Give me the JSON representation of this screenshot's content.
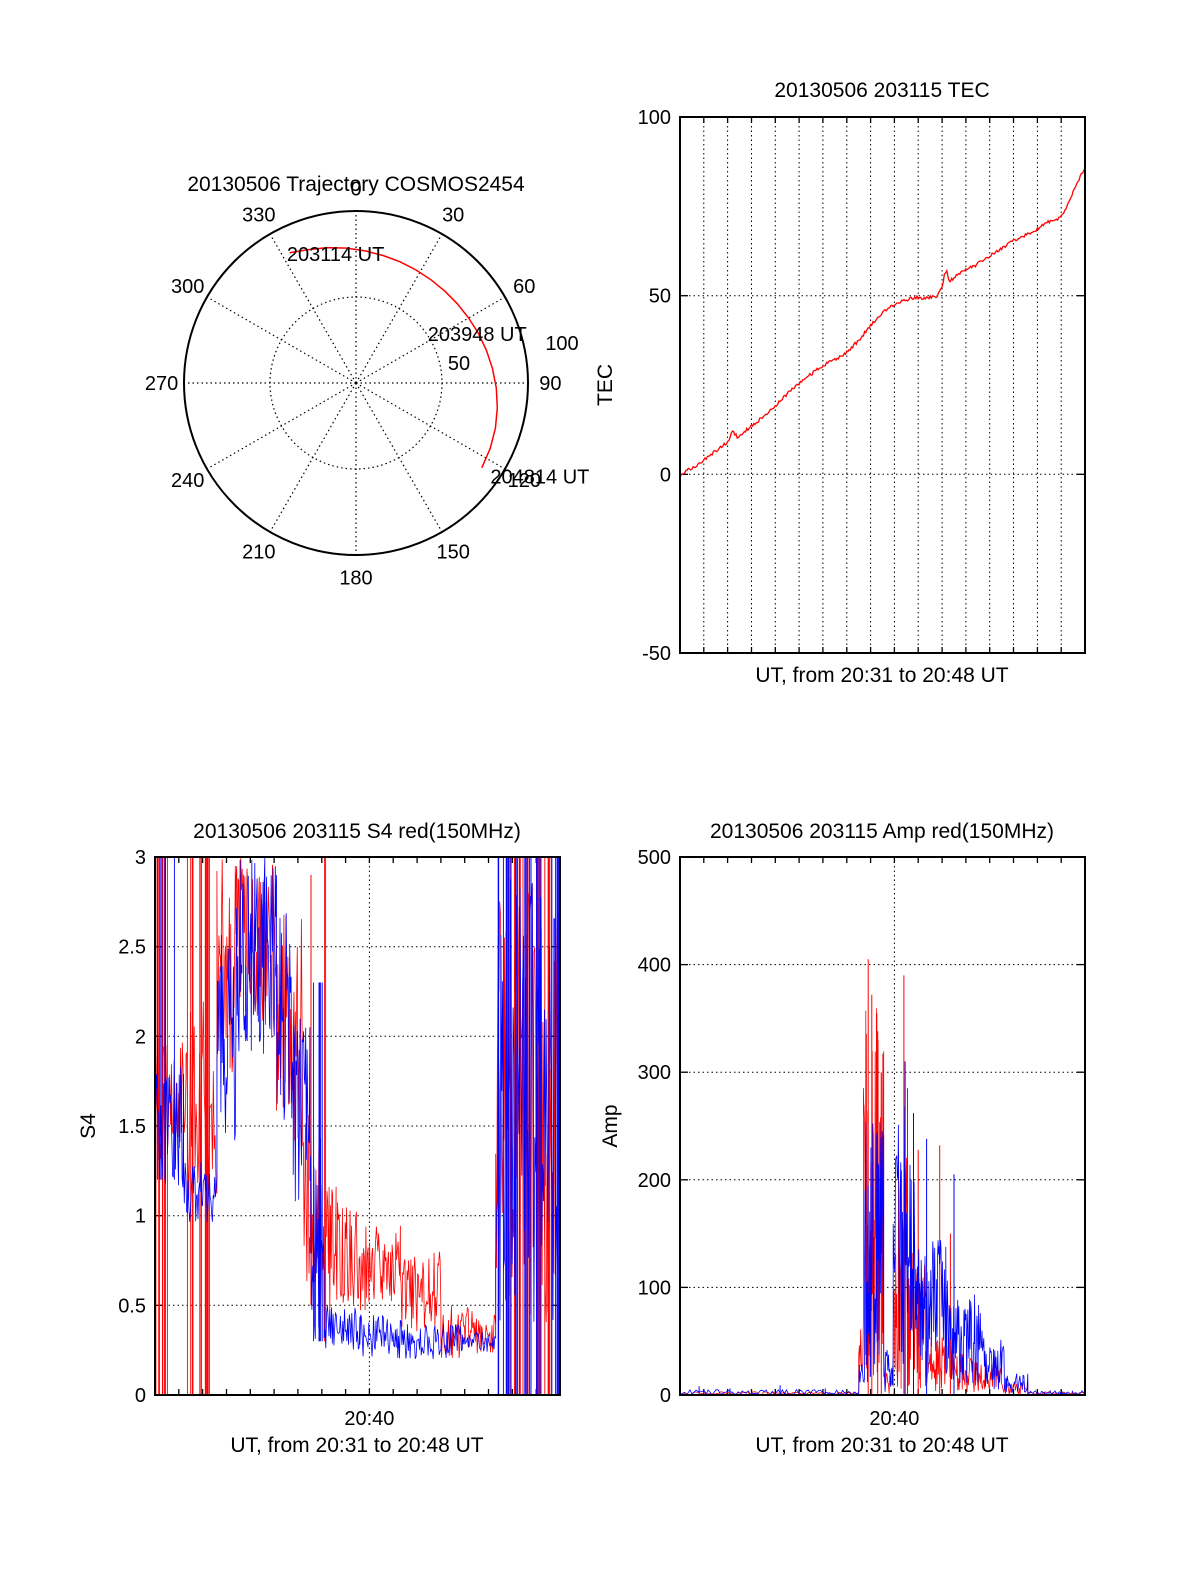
{
  "page": {
    "background": "#ffffff"
  },
  "colors": {
    "red": "#ff0000",
    "blue": "#0000ff",
    "axis": "#000000",
    "grid": "#000000"
  },
  "chart_data": [
    {
      "id": "trajectory",
      "type": "polar-trajectory",
      "title": "20130506 Trajectory COSMOS2454",
      "azimuth_ticks": [
        0,
        30,
        60,
        90,
        120,
        150,
        180,
        210,
        240,
        270,
        300,
        330
      ],
      "radial_ticks": [
        50,
        100
      ],
      "radial_max": 100,
      "grid": {
        "spokes_every_deg": 30,
        "inner_circle_r": 50
      },
      "annotations": [
        {
          "label": "203114 UT",
          "az": 351,
          "r": 76
        },
        {
          "label": "203948 UT",
          "az": 68,
          "r": 76
        },
        {
          "label": "204814 UT",
          "az": 117,
          "r": 120
        }
      ],
      "series": [
        {
          "name": "trajectory",
          "color": "#ff0000",
          "points_az_r": [
            [
              333,
              85
            ],
            [
              340,
              82.5
            ],
            [
              348,
              80.5
            ],
            [
              356,
              78.6
            ],
            [
              4,
              77
            ],
            [
              12,
              75.8
            ],
            [
              20,
              75
            ],
            [
              28,
              74.4
            ],
            [
              36,
              74.2
            ],
            [
              44,
              74.3
            ],
            [
              52,
              74.8
            ],
            [
              60,
              75.6
            ],
            [
              68,
              76.8
            ],
            [
              76,
              78.2
            ],
            [
              84,
              79.8
            ],
            [
              92,
              81.6
            ],
            [
              100,
              83.4
            ],
            [
              108,
              85.2
            ],
            [
              116,
              86.8
            ],
            [
              124,
              88.2
            ]
          ]
        }
      ]
    },
    {
      "id": "tec",
      "type": "line",
      "title": "20130506 203115 TEC",
      "xlabel": "UT, from 20:31 to 20:48 UT",
      "ylabel": "TEC",
      "ylim": [
        -50,
        100
      ],
      "yticks": [
        -50,
        0,
        50,
        100
      ],
      "x_total_minutes": 17,
      "x_start_label": "20:31",
      "x_end_label": "20:48",
      "xticks": [],
      "grid": {
        "h_dotted": [
          0,
          50
        ],
        "v_per_minute": true
      },
      "series": [
        {
          "name": "TEC",
          "color": "#ff0000",
          "noise_amp": 0.9,
          "points": [
            [
              0,
              0
            ],
            [
              0.2,
              0.6
            ],
            [
              0.4,
              1.5
            ],
            [
              0.6,
              2.1
            ],
            [
              0.8,
              3
            ],
            [
              1,
              4
            ],
            [
              1.2,
              5
            ],
            [
              1.5,
              6.5
            ],
            [
              1.8,
              8
            ],
            [
              2,
              9
            ],
            [
              2.2,
              12
            ],
            [
              2.4,
              10.5
            ],
            [
              2.6,
              11
            ],
            [
              2.8,
              12.5
            ],
            [
              3,
              13.5
            ],
            [
              3.3,
              15
            ],
            [
              3.6,
              17
            ],
            [
              3.9,
              18.5
            ],
            [
              4.2,
              20.5
            ],
            [
              4.5,
              22.5
            ],
            [
              4.8,
              24.5
            ],
            [
              5.1,
              26
            ],
            [
              5.4,
              27.5
            ],
            [
              5.7,
              29
            ],
            [
              6,
              30.5
            ],
            [
              6.3,
              31.5
            ],
            [
              6.6,
              32.5
            ],
            [
              6.9,
              33.5
            ],
            [
              7.2,
              35.5
            ],
            [
              7.5,
              37.5
            ],
            [
              7.8,
              40
            ],
            [
              8.1,
              42.5
            ],
            [
              8.4,
              44.5
            ],
            [
              8.7,
              46.5
            ],
            [
              9,
              47.5
            ],
            [
              9.3,
              48.5
            ],
            [
              9.6,
              49
            ],
            [
              9.9,
              49.5
            ],
            [
              10.2,
              49
            ],
            [
              10.5,
              49.5
            ],
            [
              10.8,
              50
            ],
            [
              11,
              52
            ],
            [
              11.1,
              56
            ],
            [
              11.2,
              57
            ],
            [
              11.3,
              54
            ],
            [
              11.5,
              55
            ],
            [
              11.8,
              56.5
            ],
            [
              12.1,
              57.5
            ],
            [
              12.4,
              58.5
            ],
            [
              12.7,
              60
            ],
            [
              13,
              61
            ],
            [
              13.3,
              62.5
            ],
            [
              13.6,
              63.5
            ],
            [
              13.9,
              65
            ],
            [
              14.2,
              66
            ],
            [
              14.5,
              67
            ],
            [
              14.8,
              68
            ],
            [
              15.1,
              69
            ],
            [
              15.4,
              70.5
            ],
            [
              15.6,
              71
            ],
            [
              15.9,
              71.5
            ],
            [
              16.1,
              73
            ],
            [
              16.3,
              76
            ],
            [
              16.5,
              79
            ],
            [
              16.7,
              82
            ],
            [
              16.85,
              84
            ],
            [
              17,
              85
            ]
          ]
        }
      ]
    },
    {
      "id": "s4",
      "type": "noisy-line",
      "title": "20130506 203115 S4 red(150MHz)",
      "xlabel": "UT, from 20:31 to 20:48 UT",
      "ylabel": "S4",
      "ylim": [
        0,
        3
      ],
      "yticks": [
        0,
        0.5,
        1,
        1.5,
        2,
        2.5,
        3
      ],
      "x_total_minutes": 17,
      "x_start_label": "20:31",
      "x_end_label": "20:48",
      "xticks": [
        {
          "t": 9,
          "label": "20:40"
        }
      ],
      "grid": {
        "h_dotted": [
          0.5,
          1,
          1.5,
          2,
          2.5
        ],
        "v_dotted_t": [
          9
        ]
      },
      "band_format": [
        "t0",
        "t1",
        "lo",
        "hi",
        "n"
      ],
      "spike_band_format": [
        "t0",
        "t1",
        "count",
        "y0",
        "y1"
      ],
      "spike_format": [
        "t",
        "y0",
        "y1"
      ],
      "series": [
        {
          "name": "red (150MHz)",
          "color": "#ff0000",
          "bands": [
            [
              0,
              1.3,
              1.3,
              2.0,
              35
            ],
            [
              1.3,
              2.6,
              1.0,
              2.2,
              35
            ],
            [
              2.6,
              3.4,
              1.8,
              3.0,
              30
            ],
            [
              3.4,
              5.1,
              1.9,
              3.0,
              60
            ],
            [
              5.1,
              6.2,
              1.4,
              2.7,
              40
            ],
            [
              6.2,
              6.9,
              0.6,
              1.7,
              25
            ],
            [
              6.9,
              7.6,
              0.45,
              1.2,
              25
            ],
            [
              7.6,
              8.6,
              0.5,
              1.1,
              35
            ],
            [
              8.6,
              10.3,
              0.45,
              0.95,
              55
            ],
            [
              10.3,
              12,
              0.35,
              0.8,
              55
            ],
            [
              12,
              13.4,
              0.2,
              0.5,
              45
            ],
            [
              13.4,
              14.3,
              0.22,
              0.45,
              30
            ],
            [
              14.3,
              17,
              0.4,
              2.9,
              80
            ]
          ],
          "spike_bands": [
            [
              0,
              0.6,
              8,
              0,
              3
            ],
            [
              1.3,
              2.6,
              14,
              0,
              3
            ],
            [
              7.1,
              7.4,
              2,
              0.3,
              3
            ],
            [
              14.3,
              17,
              28,
              0,
              3
            ]
          ],
          "spikes": [
            [
              6.55,
              0.5,
              2.9
            ]
          ]
        },
        {
          "name": "blue",
          "color": "#0000ff",
          "bands": [
            [
              0,
              1.2,
              1.15,
              1.85,
              40
            ],
            [
              1.2,
              2.6,
              0.95,
              1.3,
              45
            ],
            [
              2.6,
              3.4,
              1.3,
              2.6,
              30
            ],
            [
              3.4,
              5.1,
              1.9,
              3.0,
              70
            ],
            [
              5.1,
              5.8,
              1.5,
              2.7,
              25
            ],
            [
              5.8,
              6.5,
              1.0,
              2.1,
              25
            ],
            [
              6.5,
              7.1,
              0.3,
              1.5,
              22
            ],
            [
              7.1,
              8.6,
              0.25,
              0.5,
              45
            ],
            [
              8.6,
              10.6,
              0.2,
              0.45,
              60
            ],
            [
              10.6,
              12.9,
              0.2,
              0.4,
              65
            ],
            [
              12.9,
              14.3,
              0.24,
              0.36,
              40
            ],
            [
              14.3,
              17,
              0.4,
              2.9,
              75
            ]
          ],
          "spike_bands": [
            [
              0.1,
              1.1,
              6,
              1.2,
              3
            ],
            [
              6.6,
              7.05,
              5,
              0.3,
              2.3
            ],
            [
              14.3,
              17,
              26,
              0,
              3
            ]
          ],
          "spikes": []
        }
      ]
    },
    {
      "id": "amp",
      "type": "noisy-line",
      "title": "20130506 203115 Amp red(150MHz)",
      "xlabel": "UT, from 20:31 to 20:48 UT",
      "ylabel": "Amp",
      "ylim": [
        0,
        500
      ],
      "yticks": [
        0,
        100,
        200,
        300,
        400,
        500
      ],
      "x_total_minutes": 17,
      "x_start_label": "20:31",
      "x_end_label": "20:48",
      "xticks": [
        {
          "t": 9,
          "label": "20:40"
        }
      ],
      "grid": {
        "h_dotted": [
          100,
          200,
          300,
          400
        ],
        "v_dotted_t": [
          9
        ]
      },
      "band_format": [
        "t0",
        "t1",
        "lo",
        "hi",
        "n"
      ],
      "spike_band_format": [
        "t0",
        "t1",
        "count",
        "y0",
        "y1"
      ],
      "spike_format": [
        "t",
        "y0",
        "y1"
      ],
      "series": [
        {
          "name": "red (150MHz)",
          "color": "#ff0000",
          "bands": [
            [
              0,
              7.5,
              0,
              3,
              80
            ],
            [
              7.5,
              7.7,
              0,
              80,
              8
            ],
            [
              7.7,
              8.55,
              15,
              360,
              70
            ],
            [
              8.55,
              8.95,
              0,
              25,
              15
            ],
            [
              8.95,
              9.65,
              5,
              230,
              35
            ],
            [
              9.65,
              10.3,
              5,
              140,
              35
            ],
            [
              10.3,
              11.9,
              3,
              55,
              60
            ],
            [
              11.9,
              13.5,
              2,
              35,
              55
            ],
            [
              13.5,
              14.6,
              0,
              14,
              35
            ],
            [
              14.6,
              17,
              0,
              3,
              50
            ]
          ],
          "spike_bands": [],
          "spikes": [
            [
              7.9,
              0,
              405
            ],
            [
              8.05,
              0,
              372
            ],
            [
              8.3,
              0,
              338
            ],
            [
              8.45,
              0,
              300
            ],
            [
              9.4,
              0,
              390
            ],
            [
              9.55,
              0,
              285
            ],
            [
              10,
              0,
              228
            ],
            [
              10.9,
              0,
              232
            ],
            [
              11.35,
              0,
              150
            ]
          ]
        },
        {
          "name": "blue",
          "color": "#0000ff",
          "bands": [
            [
              0,
              7.5,
              0,
              5,
              90
            ],
            [
              7.5,
              7.75,
              0,
              30,
              10
            ],
            [
              7.75,
              8.55,
              10,
              255,
              50
            ],
            [
              8.55,
              8.95,
              0,
              45,
              15
            ],
            [
              8.95,
              9.9,
              15,
              270,
              40
            ],
            [
              9.9,
              11.3,
              20,
              145,
              70
            ],
            [
              11.3,
              12.7,
              10,
              95,
              60
            ],
            [
              12.7,
              13.7,
              5,
              55,
              40
            ],
            [
              13.7,
              14.6,
              1,
              20,
              28
            ],
            [
              14.6,
              17,
              0,
              4,
              60
            ]
          ],
          "spike_bands": [],
          "spikes": [
            [
              0.8,
              0,
              8
            ],
            [
              2.1,
              0,
              6
            ],
            [
              4.2,
              0,
              9
            ],
            [
              6.1,
              0,
              6
            ],
            [
              9.45,
              0,
              310
            ],
            [
              9.8,
              0,
              262
            ],
            [
              10.35,
              0,
              238
            ],
            [
              11.5,
              0,
              205
            ]
          ]
        }
      ]
    }
  ]
}
